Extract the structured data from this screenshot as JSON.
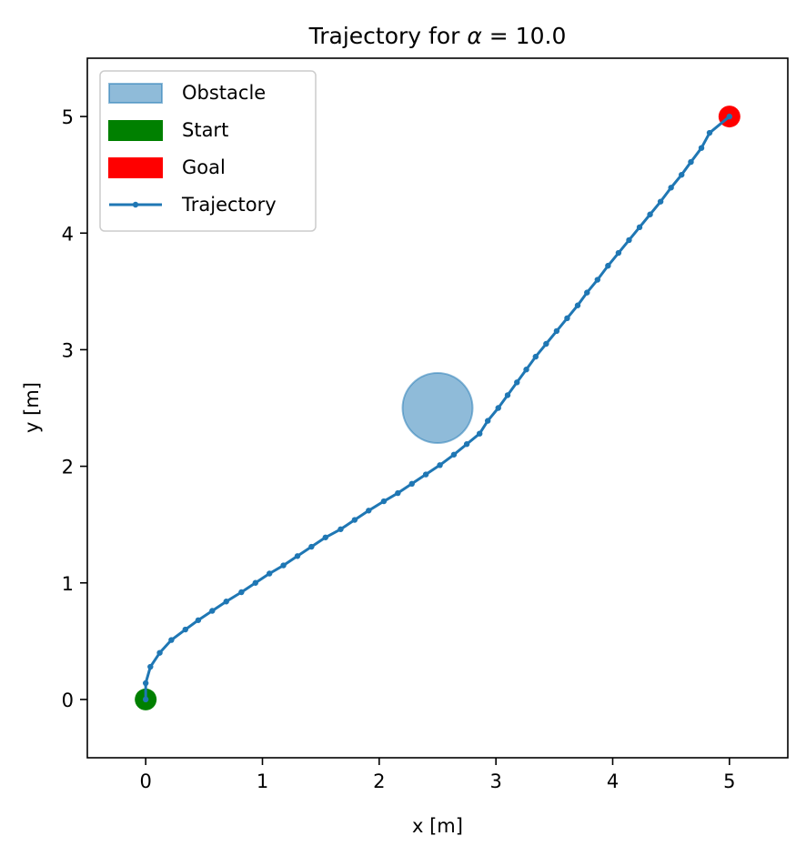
{
  "chart_data": {
    "type": "scatter",
    "title_prefix": "Trajectory for ",
    "title_symbol": "α",
    "title_suffix": " = 10.0",
    "xlabel": "x [m]",
    "ylabel": "y [m]",
    "xlim": [
      -0.5,
      5.5
    ],
    "ylim": [
      -0.5,
      5.5
    ],
    "xticks": [
      0,
      1,
      2,
      3,
      4,
      5
    ],
    "yticks": [
      0,
      1,
      2,
      3,
      4,
      5
    ],
    "grid": false,
    "legend_position": "upper-left",
    "legend": [
      {
        "label": "Obstacle",
        "kind": "patch",
        "color": "#1f77b4",
        "opacity": 0.5
      },
      {
        "label": "Start",
        "kind": "patch",
        "color": "#008000",
        "opacity": 1
      },
      {
        "label": "Goal",
        "kind": "patch",
        "color": "#ff0000",
        "opacity": 1
      },
      {
        "label": "Trajectory",
        "kind": "line-marker",
        "color": "#1f77b4",
        "opacity": 1
      }
    ],
    "obstacle": {
      "center": [
        2.5,
        2.5
      ],
      "radius": 0.3,
      "color": "#1f77b4",
      "opacity": 0.5
    },
    "start": {
      "x": 0,
      "y": 0,
      "color": "#008000"
    },
    "goal": {
      "x": 5,
      "y": 5,
      "color": "#ff0000"
    },
    "trajectory": {
      "color": "#1f77b4",
      "points": [
        [
          0.0,
          0.0
        ],
        [
          0.0,
          0.14
        ],
        [
          0.04,
          0.28
        ],
        [
          0.12,
          0.4
        ],
        [
          0.22,
          0.51
        ],
        [
          0.34,
          0.6
        ],
        [
          0.45,
          0.68
        ],
        [
          0.57,
          0.76
        ],
        [
          0.69,
          0.84
        ],
        [
          0.82,
          0.92
        ],
        [
          0.94,
          1.0
        ],
        [
          1.06,
          1.08
        ],
        [
          1.18,
          1.15
        ],
        [
          1.3,
          1.23
        ],
        [
          1.42,
          1.31
        ],
        [
          1.54,
          1.39
        ],
        [
          1.67,
          1.46
        ],
        [
          1.79,
          1.54
        ],
        [
          1.91,
          1.62
        ],
        [
          2.04,
          1.7
        ],
        [
          2.16,
          1.77
        ],
        [
          2.28,
          1.85
        ],
        [
          2.4,
          1.93
        ],
        [
          2.52,
          2.01
        ],
        [
          2.64,
          2.1
        ],
        [
          2.75,
          2.19
        ],
        [
          2.86,
          2.28
        ],
        [
          2.93,
          2.39
        ],
        [
          3.02,
          2.5
        ],
        [
          3.1,
          2.61
        ],
        [
          3.18,
          2.72
        ],
        [
          3.26,
          2.83
        ],
        [
          3.34,
          2.94
        ],
        [
          3.43,
          3.05
        ],
        [
          3.52,
          3.16
        ],
        [
          3.61,
          3.27
        ],
        [
          3.7,
          3.38
        ],
        [
          3.78,
          3.49
        ],
        [
          3.87,
          3.6
        ],
        [
          3.96,
          3.72
        ],
        [
          4.05,
          3.83
        ],
        [
          4.14,
          3.94
        ],
        [
          4.23,
          4.05
        ],
        [
          4.32,
          4.16
        ],
        [
          4.41,
          4.27
        ],
        [
          4.5,
          4.39
        ],
        [
          4.59,
          4.5
        ],
        [
          4.67,
          4.61
        ],
        [
          4.76,
          4.73
        ],
        [
          4.83,
          4.86
        ],
        [
          5.0,
          5.0
        ]
      ]
    }
  }
}
